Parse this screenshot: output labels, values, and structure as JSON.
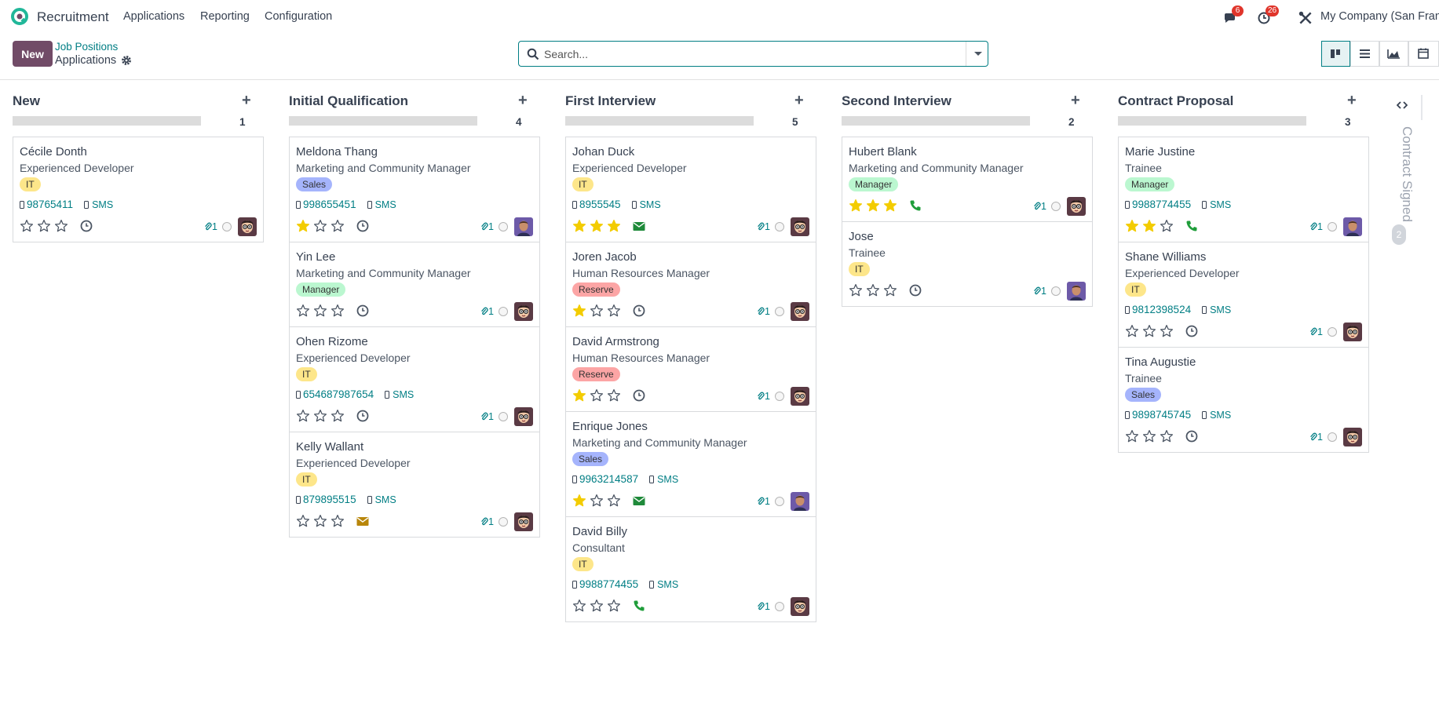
{
  "app": {
    "name": "Recruitment"
  },
  "menu": [
    "Applications",
    "Reporting",
    "Configuration"
  ],
  "systray": {
    "messages_count": "6",
    "activities_count": "26",
    "company": "My Company (San Franc"
  },
  "control": {
    "new_label": "New",
    "breadcrumb_parent": "Job Positions",
    "breadcrumb_current": "Applications",
    "search_placeholder": "Search..."
  },
  "views": [
    "kanban-view",
    "list-view",
    "graph-view",
    "calendar-view"
  ],
  "colors": {
    "accent": "#017e84",
    "primary": "#714b67",
    "star_filled": "#f3cc00",
    "tag_it": "#fde68a",
    "tag_sales": "#a5b4fc",
    "tag_manager": "#bbf7d0",
    "tag_reserve": "#fca5a5"
  },
  "columns": [
    {
      "title": "New",
      "count": "1",
      "cards": [
        {
          "name": "Cécile Donth",
          "job": "Experienced Developer",
          "tag": "IT",
          "tag_type": "it",
          "phone": "98765411",
          "sms": "SMS",
          "stars": 0,
          "activity": "clock",
          "attachments": "1",
          "avatar": "cartoon"
        }
      ]
    },
    {
      "title": "Initial Qualification",
      "count": "4",
      "cards": [
        {
          "name": "Meldona Thang",
          "job": "Marketing and Community Manager",
          "tag": "Sales",
          "tag_type": "sales",
          "phone": "998655451",
          "sms": "SMS",
          "stars": 1,
          "activity": "clock",
          "attachments": "1",
          "avatar": "photo"
        },
        {
          "name": "Yin Lee",
          "job": "Marketing and Community Manager",
          "tag": "Manager",
          "tag_type": "manager",
          "phone": "",
          "sms": "",
          "stars": 0,
          "activity": "clock",
          "attachments": "1",
          "avatar": "cartoon"
        },
        {
          "name": "Ohen Rizome",
          "job": "Experienced Developer",
          "tag": "IT",
          "tag_type": "it",
          "phone": "654687987654",
          "sms": "SMS",
          "stars": 0,
          "activity": "clock",
          "attachments": "1",
          "avatar": "cartoon"
        },
        {
          "name": "Kelly Wallant",
          "job": "Experienced Developer",
          "tag": "IT",
          "tag_type": "it",
          "phone": "879895515",
          "sms": "SMS",
          "stars": 0,
          "activity": "email-warning",
          "attachments": "1",
          "avatar": "cartoon"
        }
      ]
    },
    {
      "title": "First Interview",
      "count": "5",
      "cards": [
        {
          "name": "Johan Duck",
          "job": "Experienced Developer",
          "tag": "IT",
          "tag_type": "it",
          "phone": "8955545",
          "sms": "SMS",
          "stars": 3,
          "activity": "email",
          "attachments": "1",
          "avatar": "cartoon"
        },
        {
          "name": "Joren Jacob",
          "job": "Human Resources Manager",
          "tag": "Reserve",
          "tag_type": "reserve",
          "phone": "",
          "sms": "",
          "stars": 1,
          "activity": "clock",
          "attachments": "1",
          "avatar": "cartoon"
        },
        {
          "name": "David Armstrong",
          "job": "Human Resources Manager",
          "tag": "Reserve",
          "tag_type": "reserve",
          "phone": "",
          "sms": "",
          "stars": 1,
          "activity": "clock",
          "attachments": "1",
          "avatar": "cartoon"
        },
        {
          "name": "Enrique Jones",
          "job": "Marketing and Community Manager",
          "tag": "Sales",
          "tag_type": "sales",
          "phone": "9963214587",
          "sms": "SMS",
          "stars": 1,
          "activity": "email",
          "attachments": "1",
          "avatar": "photo"
        },
        {
          "name": "David Billy",
          "job": "Consultant",
          "tag": "IT",
          "tag_type": "it",
          "phone": "9988774455",
          "sms": "SMS",
          "stars": 0,
          "activity": "phone",
          "attachments": "1",
          "avatar": "cartoon"
        }
      ]
    },
    {
      "title": "Second Interview",
      "count": "2",
      "cards": [
        {
          "name": "Hubert Blank",
          "job": "Marketing and Community Manager",
          "tag": "Manager",
          "tag_type": "manager",
          "phone": "",
          "sms": "",
          "stars": 3,
          "activity": "phone",
          "attachments": "1",
          "avatar": "cartoon"
        },
        {
          "name": "Jose",
          "job": "Trainee",
          "tag": "IT",
          "tag_type": "it",
          "phone": "",
          "sms": "",
          "stars": 0,
          "activity": "clock",
          "attachments": "1",
          "avatar": "photo"
        }
      ]
    },
    {
      "title": "Contract Proposal",
      "count": "3",
      "cards": [
        {
          "name": "Marie Justine",
          "job": "Trainee",
          "tag": "Manager",
          "tag_type": "manager",
          "phone": "9988774455",
          "sms": "SMS",
          "stars": 2,
          "activity": "phone",
          "attachments": "1",
          "avatar": "photo"
        },
        {
          "name": "Shane Williams",
          "job": "Experienced Developer",
          "tag": "IT",
          "tag_type": "it",
          "phone": "9812398524",
          "sms": "SMS",
          "stars": 0,
          "activity": "clock",
          "attachments": "1",
          "avatar": "cartoon"
        },
        {
          "name": "Tina Augustie",
          "job": "Trainee",
          "tag": "Sales",
          "tag_type": "sales",
          "phone": "9898745745",
          "sms": "SMS",
          "stars": 0,
          "activity": "clock",
          "attachments": "1",
          "avatar": "cartoon"
        }
      ]
    }
  ],
  "folded_column": {
    "title": "Contract Signed",
    "count": "2"
  }
}
